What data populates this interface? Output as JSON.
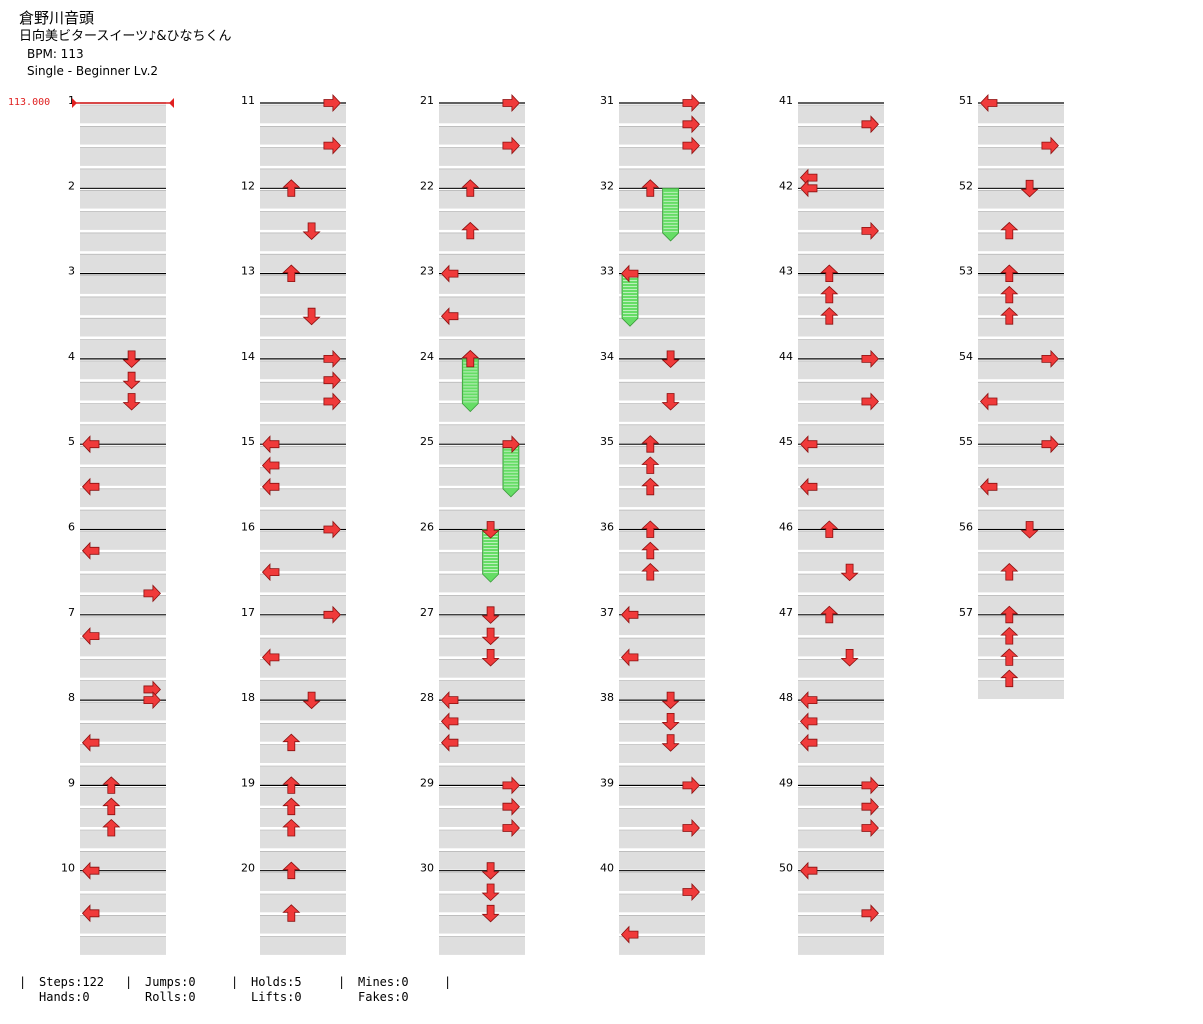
{
  "song": {
    "title": "倉野川音頭",
    "artist": "日向美ビタースイーツ♪&ひなちくん",
    "bpm": "BPM: 113",
    "difficulty": "Single - Beginner Lv.2"
  },
  "bpm_marker": "113.000",
  "colors": {
    "arrow": "#f03a3a",
    "hold": "#66dd66",
    "lane": "#dedede",
    "bpm": "#e02020"
  },
  "measures": [
    {
      "n": "1",
      "notes": []
    },
    {
      "n": "2",
      "notes": []
    },
    {
      "n": "3",
      "notes": []
    },
    {
      "n": "4",
      "notes": [
        [
          0,
          2
        ],
        [
          1,
          2
        ],
        [
          2,
          2
        ]
      ]
    },
    {
      "n": "5",
      "notes": [
        [
          0,
          0
        ],
        [
          2,
          0
        ]
      ]
    },
    {
      "n": "6",
      "notes": [
        [
          1,
          0
        ],
        [
          3,
          3
        ]
      ]
    },
    {
      "n": "7",
      "notes": [
        [
          1,
          0
        ]
      ]
    },
    {
      "n": "8",
      "notes": [
        [
          -0.5,
          3
        ],
        [
          0,
          3
        ],
        [
          2,
          0
        ]
      ]
    },
    {
      "n": "9",
      "notes": [
        [
          0,
          1
        ],
        [
          1,
          1
        ],
        [
          2,
          1
        ]
      ]
    },
    {
      "n": "10",
      "notes": [
        [
          0,
          0
        ],
        [
          2,
          0
        ]
      ]
    },
    {
      "n": "11",
      "notes": [
        [
          0,
          3
        ],
        [
          2,
          3
        ]
      ]
    },
    {
      "n": "12",
      "notes": [
        [
          0,
          1
        ],
        [
          2,
          2
        ]
      ]
    },
    {
      "n": "13",
      "notes": [
        [
          0,
          1
        ],
        [
          2,
          2
        ]
      ]
    },
    {
      "n": "14",
      "notes": [
        [
          0,
          3
        ],
        [
          1,
          3
        ],
        [
          2,
          3
        ]
      ]
    },
    {
      "n": "15",
      "notes": [
        [
          0,
          0
        ],
        [
          1,
          0
        ],
        [
          2,
          0
        ]
      ]
    },
    {
      "n": "16",
      "notes": [
        [
          0,
          3
        ],
        [
          2,
          0
        ]
      ]
    },
    {
      "n": "17",
      "notes": [
        [
          0,
          3
        ],
        [
          2,
          0
        ]
      ]
    },
    {
      "n": "18",
      "notes": [
        [
          0,
          2
        ],
        [
          2,
          1
        ]
      ]
    },
    {
      "n": "19",
      "notes": [
        [
          0,
          1
        ],
        [
          1,
          1
        ],
        [
          2,
          1
        ]
      ]
    },
    {
      "n": "20",
      "notes": [
        [
          0,
          1
        ],
        [
          2,
          1
        ]
      ]
    },
    {
      "n": "21",
      "notes": [
        [
          0,
          3
        ],
        [
          2,
          3
        ]
      ]
    },
    {
      "n": "22",
      "notes": [
        [
          0,
          1
        ],
        [
          2,
          1
        ]
      ]
    },
    {
      "n": "23",
      "notes": [
        [
          0,
          0
        ],
        [
          2,
          0
        ]
      ]
    },
    {
      "n": "24",
      "notes": [
        [
          0,
          1
        ]
      ],
      "holds": [
        [
          1,
          0,
          2
        ]
      ]
    },
    {
      "n": "25",
      "notes": [
        [
          0,
          3
        ]
      ],
      "holds": [
        [
          3,
          0,
          2
        ]
      ]
    },
    {
      "n": "26",
      "notes": [
        [
          0,
          2
        ]
      ],
      "holds": [
        [
          2,
          0,
          2
        ]
      ]
    },
    {
      "n": "27",
      "notes": [
        [
          0,
          2
        ],
        [
          1,
          2
        ],
        [
          2,
          2
        ]
      ]
    },
    {
      "n": "28",
      "notes": [
        [
          0,
          0
        ],
        [
          1,
          0
        ],
        [
          2,
          0
        ]
      ]
    },
    {
      "n": "29",
      "notes": [
        [
          0,
          3
        ],
        [
          1,
          3
        ],
        [
          2,
          3
        ]
      ]
    },
    {
      "n": "30",
      "notes": [
        [
          0,
          2
        ],
        [
          1,
          2
        ],
        [
          2,
          2
        ]
      ]
    },
    {
      "n": "31",
      "notes": [
        [
          0,
          3
        ],
        [
          1,
          3
        ],
        [
          2,
          3
        ]
      ]
    },
    {
      "n": "32",
      "notes": [
        [
          0,
          1
        ]
      ],
      "holds": [
        [
          2,
          0,
          2
        ]
      ]
    },
    {
      "n": "33",
      "notes": [
        [
          0,
          0
        ]
      ],
      "holds": [
        [
          0,
          0,
          2
        ]
      ]
    },
    {
      "n": "34",
      "notes": [
        [
          0,
          2
        ],
        [
          2,
          2
        ]
      ]
    },
    {
      "n": "35",
      "notes": [
        [
          0,
          1
        ],
        [
          1,
          1
        ],
        [
          2,
          1
        ]
      ]
    },
    {
      "n": "36",
      "notes": [
        [
          0,
          1
        ],
        [
          1,
          1
        ],
        [
          2,
          1
        ]
      ]
    },
    {
      "n": "37",
      "notes": [
        [
          0,
          0
        ],
        [
          2,
          0
        ]
      ]
    },
    {
      "n": "38",
      "notes": [
        [
          0,
          2
        ],
        [
          1,
          2
        ],
        [
          2,
          2
        ]
      ]
    },
    {
      "n": "39",
      "notes": [
        [
          0,
          3
        ],
        [
          2,
          3
        ]
      ]
    },
    {
      "n": "40",
      "notes": [
        [
          1,
          3
        ],
        [
          3,
          0
        ]
      ]
    },
    {
      "n": "41",
      "notes": [
        [
          1,
          3
        ]
      ]
    },
    {
      "n": "42",
      "notes": [
        [
          -0.5,
          0
        ],
        [
          0,
          0
        ],
        [
          2,
          3
        ]
      ]
    },
    {
      "n": "43",
      "notes": [
        [
          0,
          1
        ],
        [
          1,
          1
        ],
        [
          2,
          1
        ]
      ]
    },
    {
      "n": "44",
      "notes": [
        [
          0,
          3
        ],
        [
          2,
          3
        ]
      ]
    },
    {
      "n": "45",
      "notes": [
        [
          0,
          0
        ],
        [
          2,
          0
        ]
      ]
    },
    {
      "n": "46",
      "notes": [
        [
          0,
          1
        ],
        [
          2,
          2
        ]
      ]
    },
    {
      "n": "47",
      "notes": [
        [
          0,
          1
        ],
        [
          2,
          2
        ]
      ]
    },
    {
      "n": "48",
      "notes": [
        [
          0,
          0
        ],
        [
          1,
          0
        ],
        [
          2,
          0
        ]
      ]
    },
    {
      "n": "49",
      "notes": [
        [
          0,
          3
        ],
        [
          1,
          3
        ],
        [
          2,
          3
        ]
      ]
    },
    {
      "n": "50",
      "notes": [
        [
          0,
          0
        ],
        [
          2,
          3
        ]
      ]
    },
    {
      "n": "51",
      "notes": [
        [
          0,
          0
        ],
        [
          2,
          3
        ]
      ]
    },
    {
      "n": "52",
      "notes": [
        [
          0,
          2
        ],
        [
          2,
          1
        ]
      ]
    },
    {
      "n": "53",
      "notes": [
        [
          0,
          1
        ],
        [
          1,
          1
        ],
        [
          2,
          1
        ]
      ]
    },
    {
      "n": "54",
      "notes": [
        [
          0,
          3
        ],
        [
          2,
          0
        ]
      ]
    },
    {
      "n": "55",
      "notes": [
        [
          0,
          3
        ],
        [
          2,
          0
        ]
      ]
    },
    {
      "n": "56",
      "notes": [
        [
          0,
          2
        ],
        [
          2,
          1
        ]
      ]
    },
    {
      "n": "57",
      "notes": [
        [
          0,
          1
        ],
        [
          1,
          1
        ],
        [
          2,
          1
        ],
        [
          3,
          1
        ]
      ]
    }
  ],
  "stats": {
    "steps": "Steps:122",
    "hands": "Hands:0",
    "jumps": "Jumps:0",
    "rolls": "Rolls:0",
    "holds": "Holds:5",
    "lifts": "Lifts:0",
    "mines": "Mines:0",
    "fakes": "Fakes:0"
  }
}
